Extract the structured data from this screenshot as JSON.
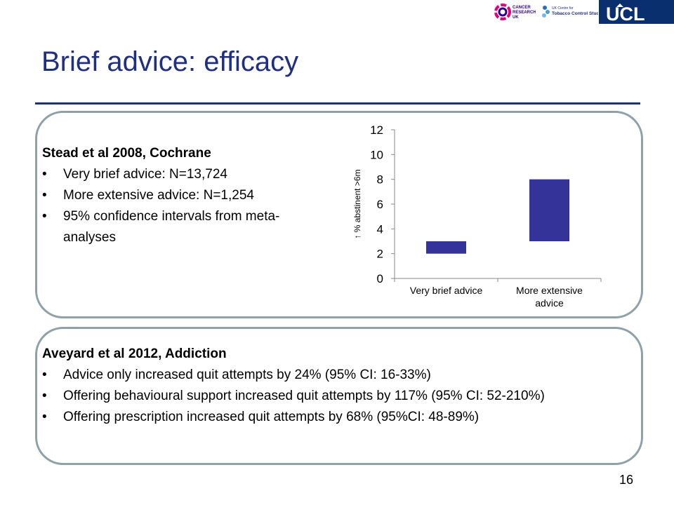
{
  "logos": {
    "cancer_research": "CANCER RESEARCH UK",
    "tobacco_centre": "UK Centre for Tobacco Control Studies",
    "ucl": "UCL"
  },
  "slide": {
    "title": "Brief advice: efficacy",
    "page_number": "16"
  },
  "panel1": {
    "heading": "Stead et al 2008, Cochrane",
    "items": [
      "Very brief advice: N=13,724",
      "More extensive advice: N=1,254",
      "95% confidence intervals from meta-analyses"
    ]
  },
  "panel2": {
    "heading": "Aveyard et al 2012, Addiction",
    "items": [
      "Advice only increased quit attempts by 24% (95% CI: 16-33%)",
      "Offering behavioural support increased quit attempts by 117% (95% CI: 52-210%)",
      "Offering prescription increased quit attempts by 68% (95%CI: 48-89%)"
    ]
  },
  "chart_data": {
    "type": "bar",
    "title": "",
    "ylabel": "↑ % abstinent >6m",
    "xlabel": "",
    "ylim": [
      0,
      12
    ],
    "yticks": [
      0,
      2,
      4,
      6,
      8,
      10,
      12
    ],
    "grid": false,
    "categories": [
      "Very brief advice",
      "More extensive advice"
    ],
    "ranges": [
      {
        "low": 2,
        "high": 3
      },
      {
        "low": 3,
        "high": 8
      }
    ],
    "bar_color": "#333399"
  }
}
